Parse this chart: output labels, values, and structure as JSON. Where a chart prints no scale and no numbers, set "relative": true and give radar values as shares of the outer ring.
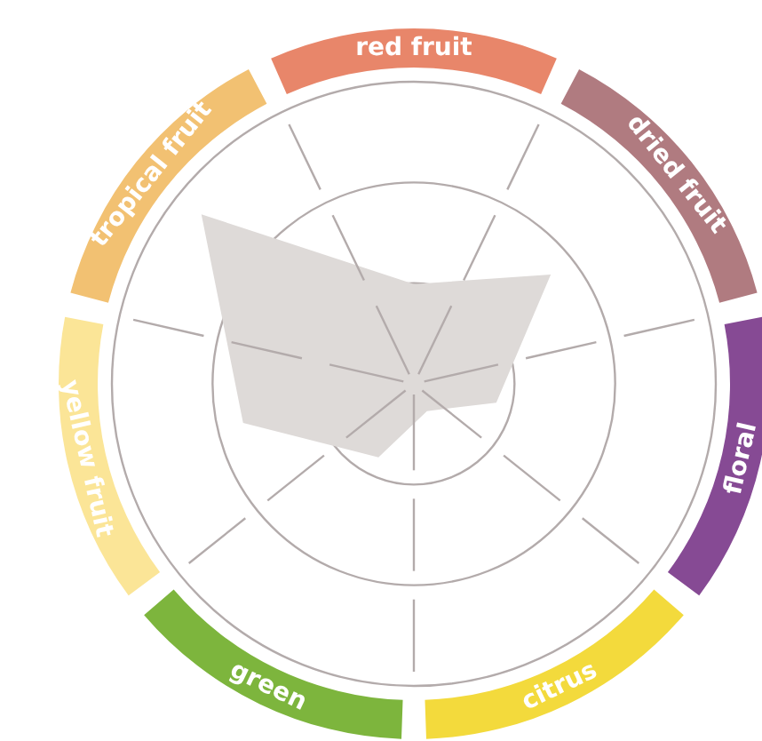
{
  "chart_data": {
    "type": "radar",
    "relative": true,
    "categories": [
      "red fruit",
      "dried fruit",
      "floral",
      "citrus",
      "green",
      "yellow fruit",
      "tropical fruit"
    ],
    "colors": [
      "#e8866a",
      "#b07b80",
      "#864a94",
      "#f3da3c",
      "#7db53d",
      "#fbe597",
      "#f2c172"
    ],
    "series": [
      {
        "color": "#dedad8",
        "values": [
          0.33,
          0.58,
          0.28,
          0.1,
          0.27,
          0.58,
          0.9
        ]
      }
    ],
    "grid": true,
    "legend": false,
    "marker": "none"
  }
}
